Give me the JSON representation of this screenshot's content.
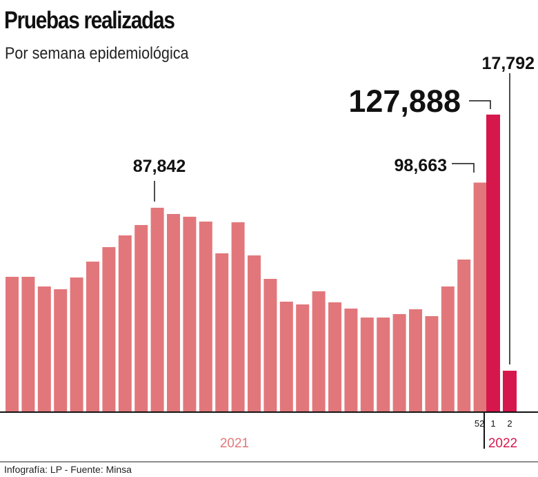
{
  "title": "Pruebas realizadas",
  "subtitle": "Por semana epidemiológica",
  "source": "Infografía: LP - Fuente: Minsa",
  "chart_data": {
    "type": "bar",
    "title": "Pruebas realizadas",
    "subtitle": "Por semana epidemiológica",
    "groups": [
      {
        "label": "2021",
        "color": "#e2777b",
        "categories": [
          "",
          "",
          "",
          "",
          "",
          "",
          "",
          "",
          "",
          "",
          "",
          "",
          "",
          "",
          "",
          "",
          "",
          "",
          "",
          "",
          "",
          "",
          "",
          "",
          "",
          "",
          "",
          "",
          "",
          "52"
        ],
        "values": [
          58160,
          58160,
          54000,
          52820,
          57860,
          64690,
          70920,
          75960,
          80420,
          87842,
          85160,
          83980,
          81900,
          68250,
          81600,
          67360,
          57270,
          47480,
          46290,
          51930,
          47180,
          44510,
          40650,
          40650,
          42140,
          44210,
          41250,
          54000,
          65580,
          98663
        ]
      },
      {
        "label": "2022",
        "color": "#d6174c",
        "categories": [
          "1",
          "2"
        ],
        "values": [
          127888,
          17792
        ]
      }
    ],
    "annotations": [
      {
        "text": "87,842",
        "group": 0,
        "index": 9
      },
      {
        "text": "98,663",
        "group": 0,
        "index": 29
      },
      {
        "text": "127,888",
        "group": 1,
        "index": 0
      },
      {
        "text": "17,792",
        "group": 1,
        "index": 1
      }
    ],
    "ylim": [
      0,
      128000
    ],
    "grid": false
  }
}
